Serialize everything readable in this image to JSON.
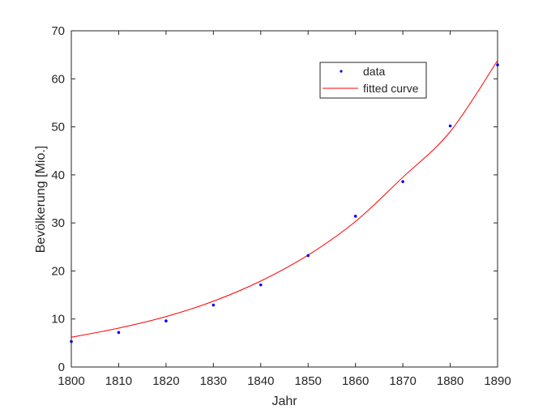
{
  "chart_data": {
    "type": "scatter",
    "title": "",
    "xlabel": "Jahr",
    "ylabel": "Bevölkerung [Mio.]",
    "xlim": [
      1800,
      1890
    ],
    "ylim": [
      0,
      70
    ],
    "xticks": [
      "1800",
      "1810",
      "1820",
      "1830",
      "1840",
      "1850",
      "1860",
      "1870",
      "1880",
      "1890"
    ],
    "yticks": [
      "0",
      "10",
      "20",
      "30",
      "40",
      "50",
      "60",
      "70"
    ],
    "grid": false,
    "legend_position": "top-right",
    "series": [
      {
        "name": "data",
        "kind": "points",
        "color": "#0000ff",
        "x": [
          1800,
          1810,
          1820,
          1830,
          1840,
          1850,
          1860,
          1870,
          1880,
          1890
        ],
        "y": [
          5.3,
          7.2,
          9.6,
          12.9,
          17.1,
          23.2,
          31.4,
          38.6,
          50.2,
          62.9
        ]
      },
      {
        "name": "fitted curve",
        "kind": "line",
        "color": "#ff0000",
        "x": [
          1800,
          1810,
          1820,
          1830,
          1840,
          1850,
          1860,
          1870,
          1880,
          1890
        ],
        "y": [
          6.2,
          8.1,
          10.5,
          13.7,
          17.9,
          23.3,
          30.3,
          39.5,
          49.0,
          63.8
        ]
      }
    ]
  }
}
